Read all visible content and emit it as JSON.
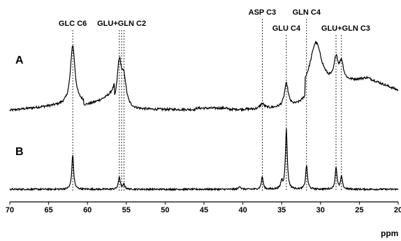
{
  "chart_data": {
    "type": "line",
    "title": "",
    "xlabel": "ppm",
    "ylabel": "",
    "xlim": [
      70,
      20
    ],
    "x_reversed": true,
    "x_ticks": [
      70,
      65,
      60,
      55,
      50,
      45,
      40,
      35,
      30,
      25,
      20
    ],
    "grid": false,
    "legend": "none",
    "panels": [
      {
        "name": "A",
        "peaks": [
          {
            "ppm": 61.9,
            "height": 0.88
          },
          {
            "ppm": 55.9,
            "height": 0.68
          },
          {
            "ppm": 55.3,
            "height": 0.4
          },
          {
            "ppm": 37.5,
            "height": 0.07
          },
          {
            "ppm": 34.4,
            "height": 0.35
          },
          {
            "ppm": 30.6,
            "height": 0.7
          },
          {
            "ppm": 28.0,
            "height": 0.35
          },
          {
            "ppm": 27.3,
            "height": 0.28
          }
        ]
      },
      {
        "name": "B",
        "peaks": [
          {
            "ppm": 61.9,
            "height": 0.55
          },
          {
            "ppm": 55.9,
            "height": 0.2
          },
          {
            "ppm": 55.3,
            "height": 0.08
          },
          {
            "ppm": 40.4,
            "height": 0.05
          },
          {
            "ppm": 37.5,
            "height": 0.2
          },
          {
            "ppm": 35.0,
            "height": 0.12
          },
          {
            "ppm": 34.4,
            "height": 0.95
          },
          {
            "ppm": 31.8,
            "height": 0.38
          },
          {
            "ppm": 28.0,
            "height": 0.35
          },
          {
            "ppm": 27.3,
            "height": 0.2
          }
        ]
      }
    ],
    "annotations": [
      {
        "text": "GLC C6",
        "ppm_lines": [
          61.9
        ]
      },
      {
        "text": "GLU+GLN C2",
        "ppm_lines": [
          55.9,
          55.6,
          55.3
        ]
      },
      {
        "text": "ASP C3",
        "ppm_lines": [
          37.5
        ]
      },
      {
        "text": "GLU C4",
        "ppm_lines": [
          34.4
        ]
      },
      {
        "text": "GLN C4",
        "ppm_lines": [
          31.8
        ]
      },
      {
        "text": "GLU+GLN C3",
        "ppm_lines": [
          28.0,
          27.3
        ]
      }
    ]
  }
}
